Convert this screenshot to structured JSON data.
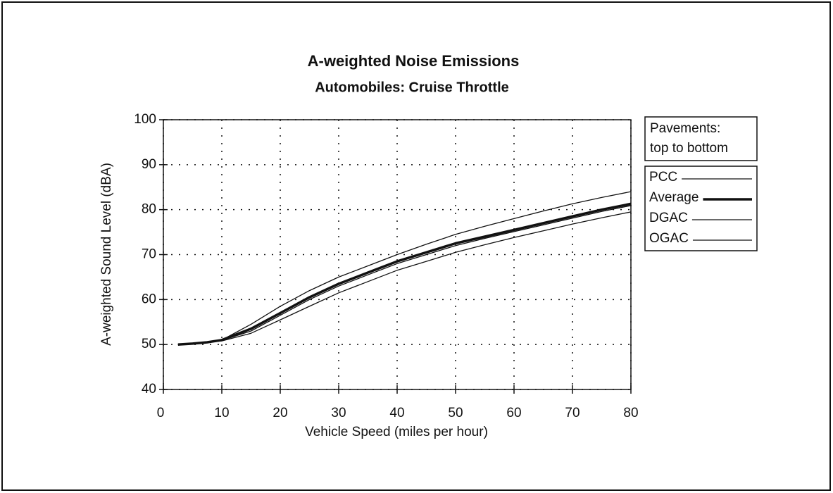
{
  "chart_data": {
    "type": "line",
    "title": "A-weighted Noise Emissions",
    "subtitle": "Automobiles: Cruise Throttle",
    "x_label": "Vehicle Speed (miles per hour)",
    "y_label": "A-weighted Sound Level (dBA)",
    "legend_title": [
      "Pavements:",
      "top to bottom"
    ],
    "x": [
      2.5,
      5,
      7.5,
      10,
      15,
      20,
      25,
      30,
      35,
      40,
      45,
      50,
      55,
      60,
      65,
      70,
      75,
      80
    ],
    "series": [
      {
        "name": "PCC",
        "color": "#111111",
        "line_width": 1.3,
        "values": [
          50,
          50.2,
          50.5,
          51,
          54.5,
          58.5,
          62,
          65,
          67.5,
          70,
          72.3,
          74.5,
          76.3,
          78,
          79.7,
          81.3,
          82.7,
          84
        ]
      },
      {
        "name": "Average",
        "color": "#111111",
        "line_width": 3.5,
        "values": [
          50,
          50.2,
          50.5,
          51,
          53.5,
          57,
          60.5,
          63.5,
          66,
          68.5,
          70.5,
          72.5,
          74,
          75.5,
          77,
          78.5,
          80,
          81.3
        ]
      },
      {
        "name": "DGAC",
        "color": "#111111",
        "line_width": 1.3,
        "values": [
          50,
          50.2,
          50.5,
          50.9,
          53,
          56.5,
          60,
          63,
          65.5,
          68,
          70,
          72,
          73.6,
          75.1,
          76.6,
          78.1,
          79.6,
          80.9
        ]
      },
      {
        "name": "OGAC",
        "color": "#111111",
        "line_width": 1.3,
        "values": [
          50,
          50.2,
          50.5,
          50.8,
          52.5,
          55.5,
          58.5,
          61.5,
          64,
          66.5,
          68.5,
          70.5,
          72.2,
          73.8,
          75.3,
          76.8,
          78.2,
          79.5
        ]
      }
    ],
    "xlim": [
      0,
      80
    ],
    "ylim": [
      40,
      100
    ],
    "xticks": [
      0,
      10,
      20,
      30,
      40,
      50,
      60,
      70,
      80
    ],
    "yticks": [
      40,
      50,
      60,
      70,
      80,
      90,
      100
    ],
    "grid": true
  }
}
